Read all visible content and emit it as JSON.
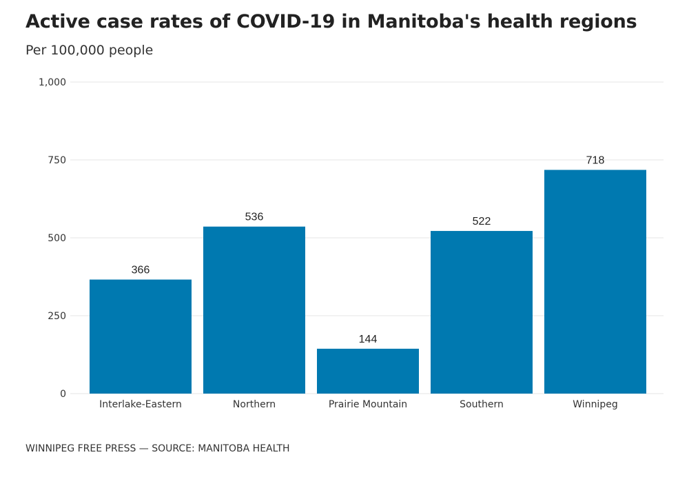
{
  "header": {
    "title": "Active case rates of COVID-19 in Manitoba's health regions",
    "subtitle": "Per 100,000 people"
  },
  "footer": {
    "source": "WINNIPEG FREE PRESS — SOURCE: MANITOBA HEALTH"
  },
  "colors": {
    "bar": "#0079b0",
    "grid": "#e6e6e6"
  },
  "chart_data": {
    "type": "bar",
    "title": "Active case rates of COVID-19 in Manitoba's health regions",
    "subtitle": "Per 100,000 people",
    "xlabel": "",
    "ylabel": "",
    "categories": [
      "Interlake-Eastern",
      "Northern",
      "Prairie Mountain",
      "Southern",
      "Winnipeg"
    ],
    "values": [
      366,
      536,
      144,
      522,
      718
    ],
    "data_labels": [
      "366",
      "536",
      "144",
      "522",
      "718"
    ],
    "ylim": [
      0,
      1000
    ],
    "yticks": [
      0,
      250,
      500,
      750,
      1000
    ],
    "ytick_labels": [
      "0",
      "250",
      "500",
      "750",
      "1,000"
    ],
    "grid": true,
    "legend": "none"
  }
}
